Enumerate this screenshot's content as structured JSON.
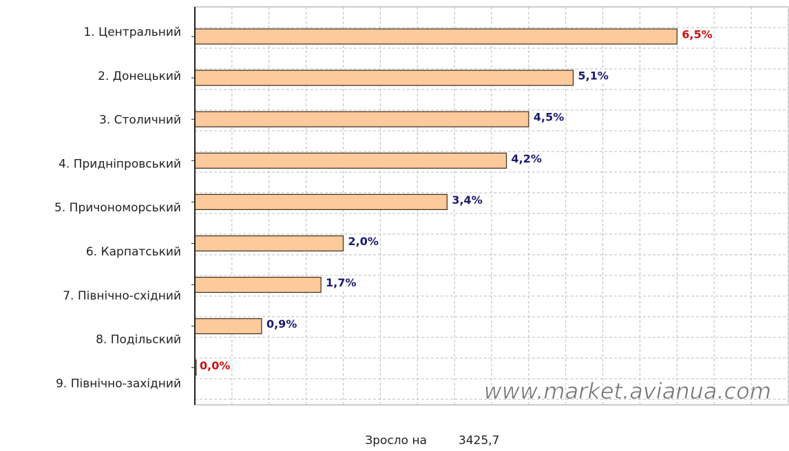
{
  "chart_data": {
    "type": "bar",
    "orientation": "horizontal",
    "categories": [
      "1. Центральний",
      "2. Донецький",
      "3. Столичний",
      "4. Придніпровський",
      "5. Причономорський",
      "6. Карпатський",
      "7. Північно-східний",
      "8. Подільский",
      "9. Північно-західний"
    ],
    "values": [
      6.5,
      5.1,
      4.5,
      4.2,
      3.4,
      2.0,
      1.7,
      0.9,
      0.0
    ],
    "value_labels": [
      "6,5%",
      "5,1%",
      "4,5%",
      "4,2%",
      "3,4%",
      "2,0%",
      "1,7%",
      "0,9%",
      "0,0%"
    ],
    "value_label_colors": [
      "#cc1111",
      "#1a1a70",
      "#1a1a70",
      "#1a1a70",
      "#1a1a70",
      "#1a1a70",
      "#1a1a70",
      "#1a1a70",
      "#cc1111"
    ],
    "color": "#fdca9c",
    "xlim": [
      0,
      8
    ],
    "xticks": [
      0,
      0.5,
      1,
      1.5,
      2,
      2.5,
      3,
      3.5,
      4,
      4.5,
      5,
      5.5,
      6,
      6.5,
      7,
      7.5,
      8
    ],
    "grid": true,
    "watermark": "www.market.avianua.com",
    "footer": {
      "label": "Зросло на",
      "value": "3425,7"
    }
  }
}
